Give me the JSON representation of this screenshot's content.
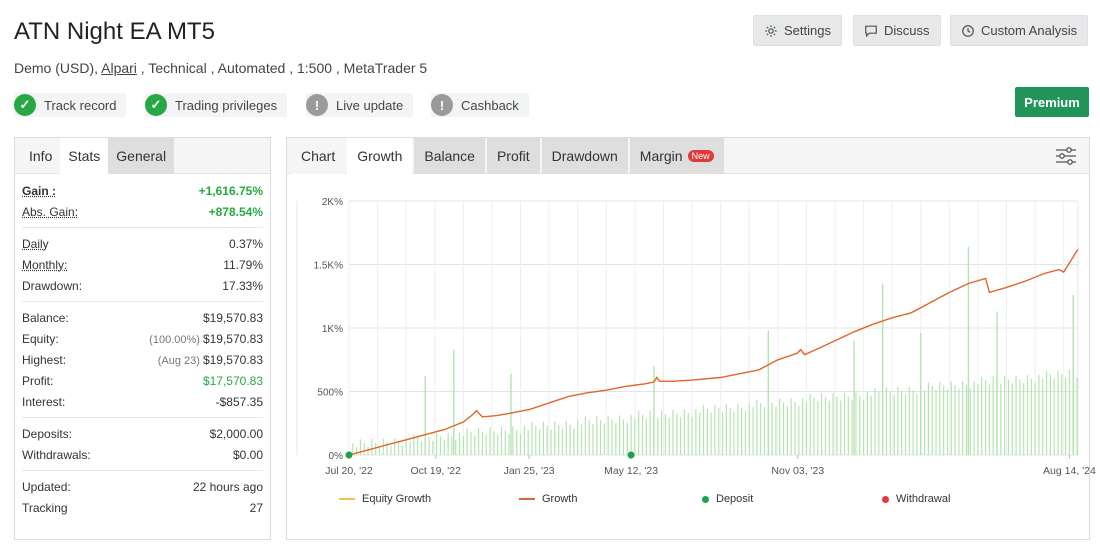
{
  "header": {
    "title": "ATN Night EA MT5",
    "sub_prefix": "Demo (USD), ",
    "sub_link": "Alpari",
    "sub_suffix": " , Technical , Automated , 1:500 , MetaTrader 5"
  },
  "actions": {
    "settings": "Settings",
    "discuss": "Discuss",
    "custom_analysis": "Custom Analysis",
    "premium": "Premium"
  },
  "badges": [
    {
      "label": "Track record",
      "status": "verified"
    },
    {
      "label": "Trading privileges",
      "status": "verified"
    },
    {
      "label": "Live update",
      "status": "unverified"
    },
    {
      "label": "Cashback",
      "status": "unverified"
    }
  ],
  "left_tabs": [
    "Info",
    "Stats",
    "General"
  ],
  "stats": {
    "gain_label": "Gain :",
    "gain": "+1,616.75%",
    "abs_gain_label": "Abs. Gain:",
    "abs_gain": "+878.54%",
    "daily_label": "Daily",
    "daily": "0.37%",
    "monthly_label": "Monthly:",
    "monthly": "11.79%",
    "drawdown_label": "Drawdown:",
    "drawdown": "17.33%",
    "balance_label": "Balance:",
    "balance": "$19,570.83",
    "equity_label": "Equity:",
    "equity_note": "(100.00%)",
    "equity": "$19,570.83",
    "highest_label": "Highest:",
    "highest_note": "(Aug 23)",
    "highest": "$19,570.83",
    "profit_label": "Profit:",
    "profit": "$17,570.83",
    "interest_label": "Interest:",
    "interest": "-$857.35",
    "deposits_label": "Deposits:",
    "deposits": "$2,000.00",
    "withdrawals_label": "Withdrawals:",
    "withdrawals": "$0.00",
    "updated_label": "Updated:",
    "updated": "22 hours ago",
    "tracking_label": "Tracking",
    "tracking": "27"
  },
  "chart_tabs": [
    "Chart",
    "Growth",
    "Balance",
    "Profit",
    "Drawdown",
    "Margin"
  ],
  "new_tag": "New",
  "legend": {
    "equity_growth": "Equity Growth",
    "growth": "Growth",
    "deposit": "Deposit",
    "withdrawal": "Withdrawal"
  },
  "colors": {
    "growth_line": "#e0662a",
    "equity_line": "#f2c14e",
    "bars": "#b5e3b0",
    "deposit": "#1aa34a",
    "withdrawal": "#e23a3a",
    "premium": "#21945a",
    "gain": "#27a844"
  },
  "chart_data": {
    "type": "line",
    "ylim": [
      0,
      2000
    ],
    "y_ticks": [
      "0%",
      "500%",
      "1K%",
      "1.5K%",
      "2K%"
    ],
    "x_ticks": [
      "Jul 20, '22",
      "Oct 19, '22",
      "Jan 25, '23",
      "May 12, '23",
      "Nov 03, '23",
      "Aug 14, '24"
    ],
    "x_tick_days": [
      0,
      91,
      189,
      296,
      471,
      756
    ],
    "x_range_days": [
      0,
      765
    ],
    "series": [
      {
        "name": "Growth",
        "points": [
          [
            0,
            0
          ],
          [
            20,
            40
          ],
          [
            40,
            80
          ],
          [
            60,
            120
          ],
          [
            80,
            160
          ],
          [
            100,
            200
          ],
          [
            120,
            260
          ],
          [
            130,
            320
          ],
          [
            134,
            350
          ],
          [
            136,
            330
          ],
          [
            140,
            300
          ],
          [
            155,
            310
          ],
          [
            170,
            330
          ],
          [
            190,
            360
          ],
          [
            210,
            410
          ],
          [
            230,
            460
          ],
          [
            250,
            490
          ],
          [
            270,
            510
          ],
          [
            290,
            540
          ],
          [
            310,
            560
          ],
          [
            320,
            575
          ],
          [
            323,
            610
          ],
          [
            326,
            580
          ],
          [
            340,
            580
          ],
          [
            360,
            590
          ],
          [
            390,
            610
          ],
          [
            410,
            640
          ],
          [
            430,
            670
          ],
          [
            450,
            750
          ],
          [
            470,
            800
          ],
          [
            474,
            830
          ],
          [
            478,
            790
          ],
          [
            490,
            830
          ],
          [
            510,
            900
          ],
          [
            530,
            970
          ],
          [
            550,
            1030
          ],
          [
            570,
            1080
          ],
          [
            590,
            1120
          ],
          [
            610,
            1200
          ],
          [
            630,
            1280
          ],
          [
            650,
            1350
          ],
          [
            668,
            1390
          ],
          [
            672,
            1280
          ],
          [
            690,
            1320
          ],
          [
            710,
            1370
          ],
          [
            730,
            1430
          ],
          [
            745,
            1460
          ],
          [
            750,
            1440
          ],
          [
            755,
            1500
          ],
          [
            760,
            1560
          ],
          [
            765,
            1620
          ]
        ]
      }
    ],
    "bars": [
      {
        "x": 650,
        "y": 1640
      },
      {
        "x": 560,
        "y": 1350
      },
      {
        "x": 680,
        "y": 1130
      },
      {
        "x": 760,
        "y": 1260
      },
      {
        "x": 110,
        "y": 830
      },
      {
        "x": 530,
        "y": 900
      },
      {
        "x": 440,
        "y": 980
      },
      {
        "x": 600,
        "y": 960
      },
      {
        "x": 80,
        "y": 620
      },
      {
        "x": 170,
        "y": 640
      },
      {
        "x": 320,
        "y": 700
      }
    ],
    "deposits": [
      [
        0,
        0
      ],
      [
        296,
        0
      ]
    ],
    "withdrawals": []
  }
}
